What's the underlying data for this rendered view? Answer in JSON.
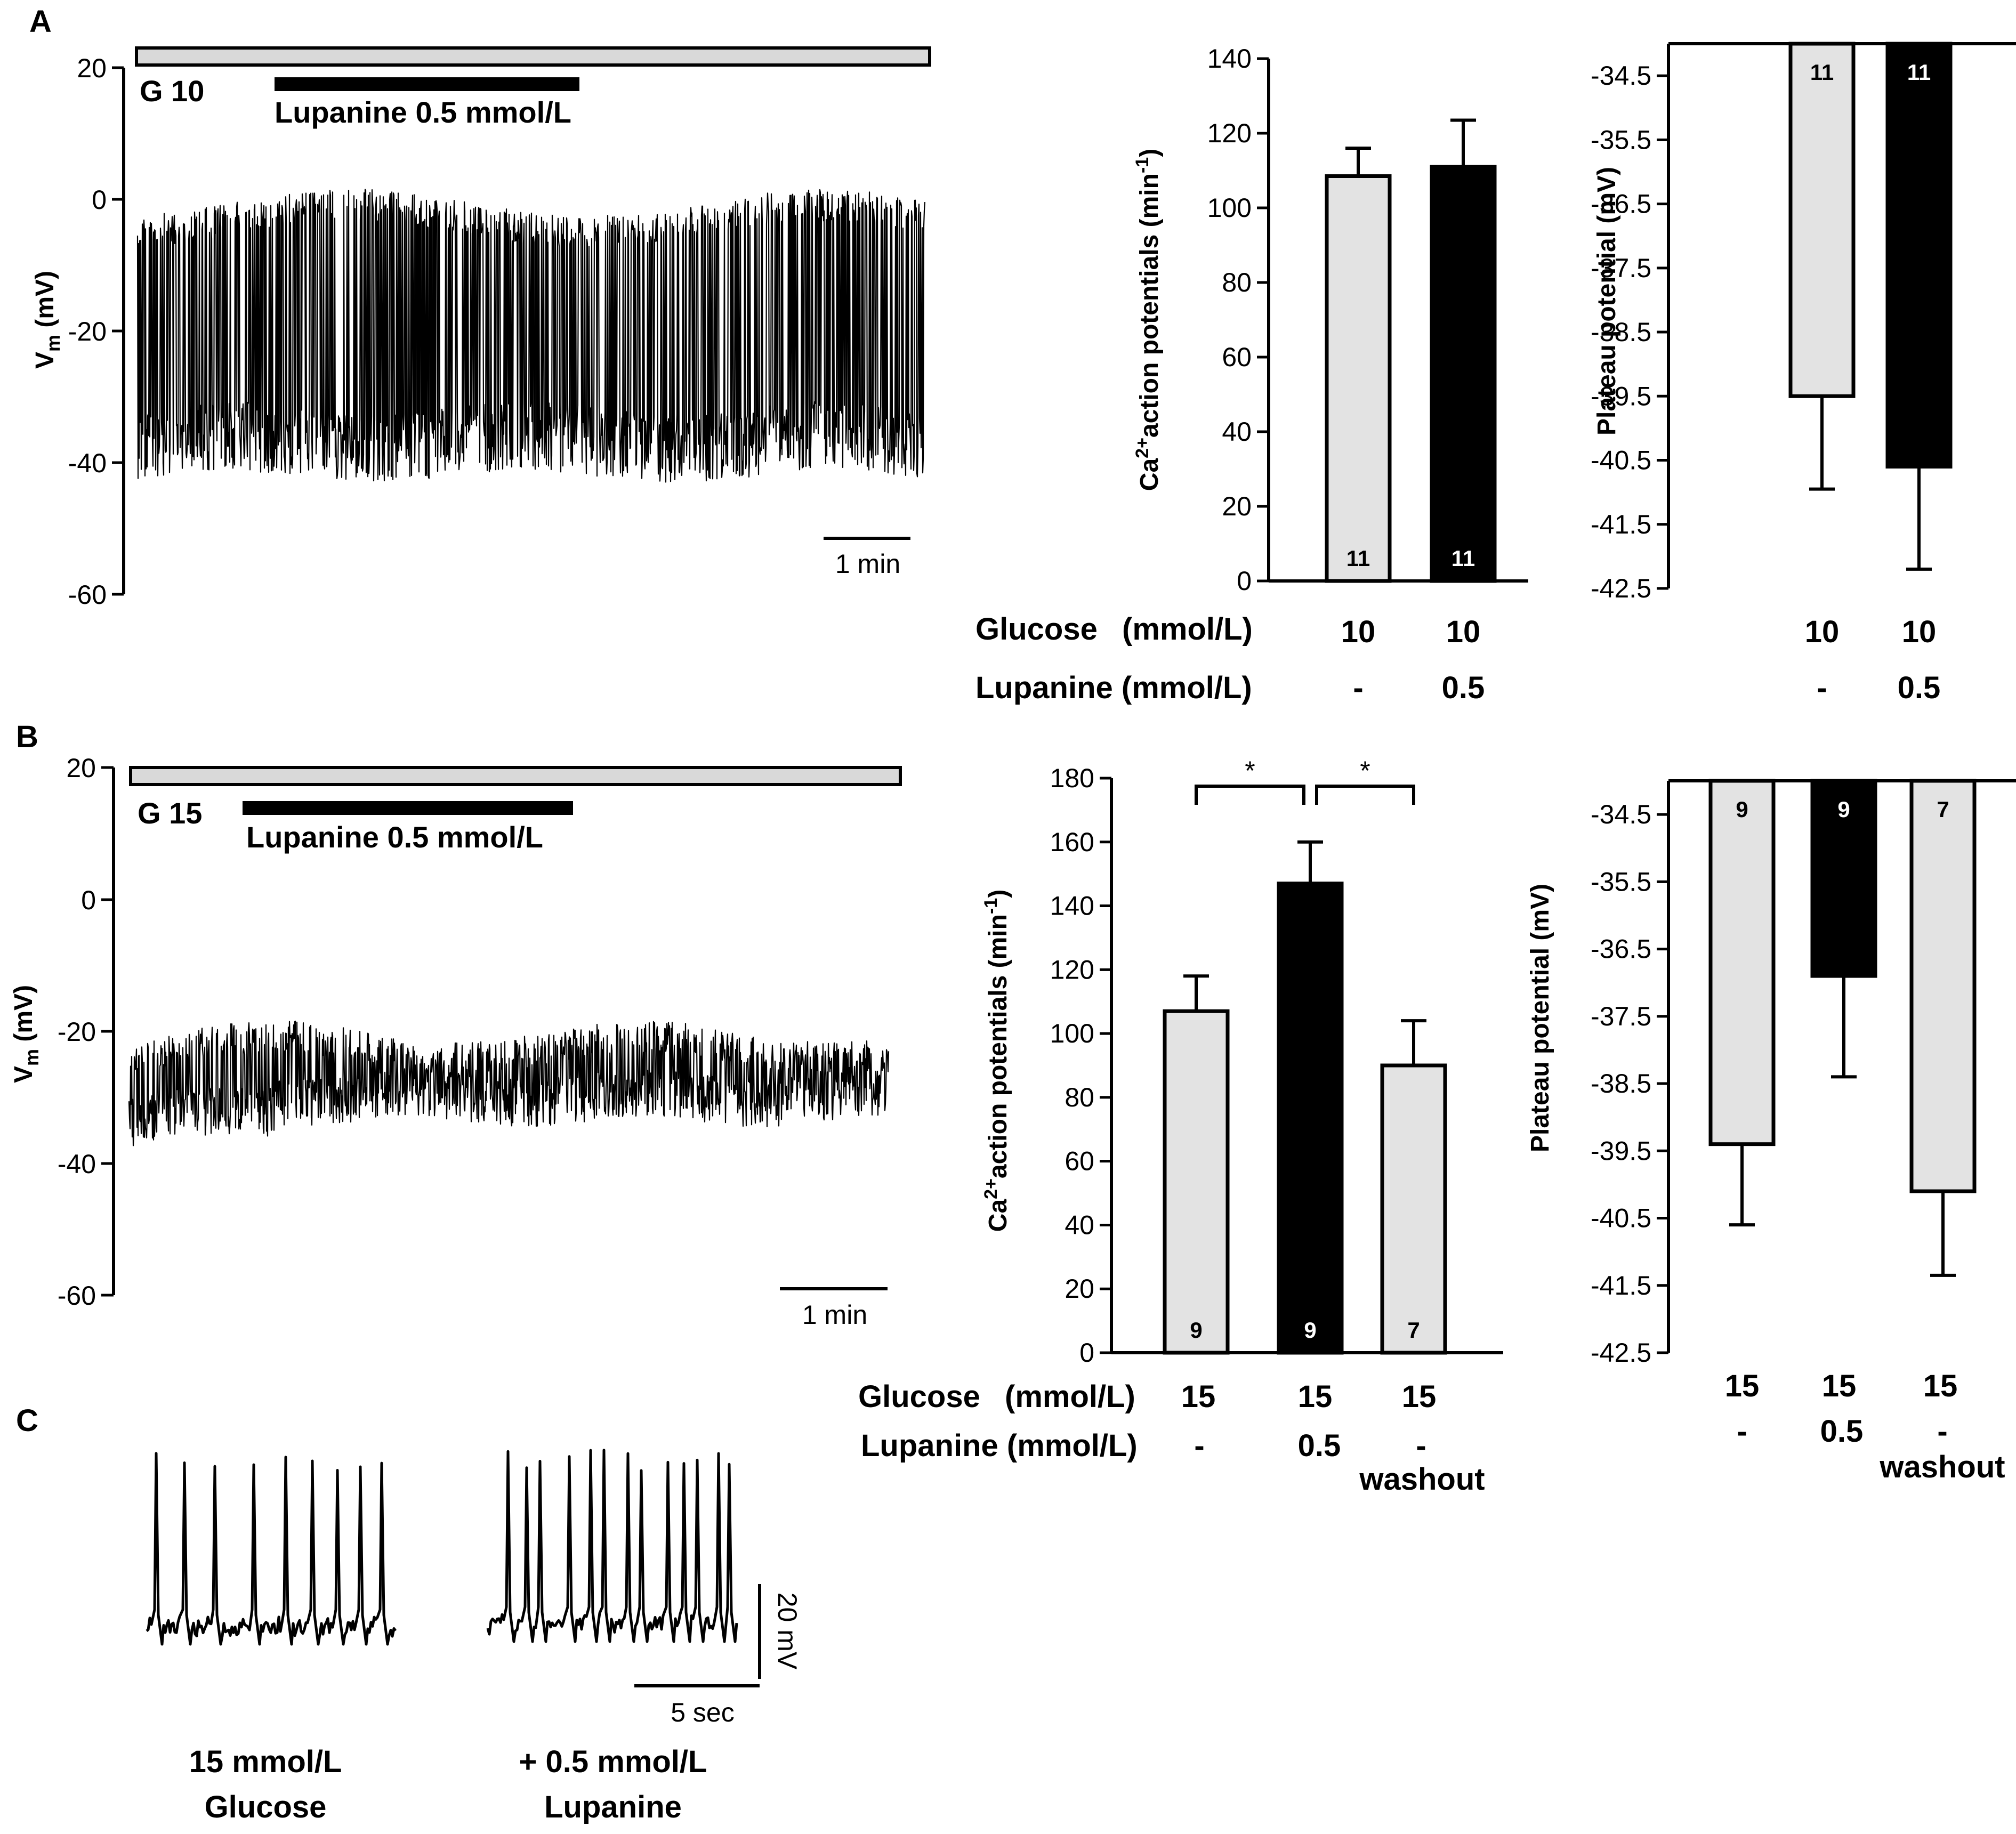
{
  "panels": {
    "a": "A",
    "b": "B",
    "c": "C"
  },
  "labels": {
    "glucose": "Glucose",
    "units": "(mmol/L)",
    "lupanine": "Lupanine (mmol/L)",
    "scale_time": "1 min",
    "scale_sec": "5 sec",
    "scale_mv": "20 mV",
    "c_left_1": "15 mmol/L",
    "c_left_2": "Glucose",
    "c_right_1": "+ 0.5 mmol/L",
    "c_right_2": "Lupanine",
    "star": "*"
  },
  "traceA": {
    "g_label": "G 10",
    "drug_label": "Lupanine 0.5 mmol/L",
    "ylabel_main": "V",
    "ylabel_sub": "m",
    "ylabel_unit": " (mV)",
    "yticks": [
      "20",
      "0",
      "-20",
      "-40",
      "-60"
    ]
  },
  "traceB": {
    "g_label": "G 15",
    "drug_label": "Lupanine 0.5 mmol/L",
    "ylabel_main": "V",
    "ylabel_sub": "m",
    "ylabel_unit": " (mV)",
    "yticks": [
      "20",
      "0",
      "-20",
      "-40",
      "-60"
    ]
  },
  "chart_data": [
    {
      "type": "bar",
      "id": "A-freq",
      "ylabel": "Ca2+ action potentials (min-1)",
      "ylabel_parts": [
        "Ca",
        "2+",
        "action potentials (min",
        "-1",
        ")"
      ],
      "ylim": [
        0,
        140
      ],
      "yticks": [
        "0",
        "20",
        "40",
        "60",
        "80",
        "100",
        "120",
        "140"
      ],
      "glucose": [
        "10",
        "10"
      ],
      "lupanine": [
        "-",
        "0.5"
      ],
      "values": [
        108.5,
        111
      ],
      "errors": [
        7.5,
        12.5
      ],
      "n": [
        "11",
        "11"
      ],
      "fills": [
        "#e3e3e3",
        "#000000"
      ]
    },
    {
      "type": "bar",
      "id": "A-plateau",
      "ylabel": "Plateau potential (mV)",
      "ylim": [
        -42.5,
        -34
      ],
      "yticks": [
        "-34.5",
        "-35.5",
        "-36.5",
        "-37.5",
        "-38.5",
        "-39.5",
        "-40.5",
        "-41.5",
        "-42.5"
      ],
      "glucose": [
        "10",
        "10"
      ],
      "lupanine": [
        "-",
        "0.5"
      ],
      "values": [
        -39.5,
        -40.6
      ],
      "errors": [
        1.45,
        1.6
      ],
      "n": [
        "11",
        "11"
      ],
      "fills": [
        "#e3e3e3",
        "#000000"
      ]
    },
    {
      "type": "bar",
      "id": "B-freq",
      "ylabel": "Ca2+ action potentials (min-1)",
      "ylabel_parts": [
        "Ca",
        "2+",
        "action potentials (min",
        "-1",
        ")"
      ],
      "ylim": [
        0,
        180
      ],
      "yticks": [
        "0",
        "20",
        "40",
        "60",
        "80",
        "100",
        "120",
        "140",
        "160",
        "180"
      ],
      "glucose": [
        "15",
        "15",
        "15"
      ],
      "lupanine": [
        "-",
        "0.5",
        "-"
      ],
      "extra": [
        "",
        "",
        "washout"
      ],
      "values": [
        107,
        147,
        90
      ],
      "errors": [
        11,
        13,
        14
      ],
      "n": [
        "9",
        "9",
        "7"
      ],
      "fills": [
        "#e3e3e3",
        "#000000",
        "#e3e3e3"
      ],
      "significance": [
        {
          "pair": [
            0,
            1
          ],
          "label": "*"
        },
        {
          "pair": [
            1,
            2
          ],
          "label": "*"
        }
      ]
    },
    {
      "type": "bar",
      "id": "B-plateau",
      "ylabel": "Plateau potential (mV)",
      "ylim": [
        -42.5,
        -34
      ],
      "yticks": [
        "-34.5",
        "-35.5",
        "-36.5",
        "-37.5",
        "-38.5",
        "-39.5",
        "-40.5",
        "-41.5",
        "-42.5"
      ],
      "glucose": [
        "15",
        "15",
        "15"
      ],
      "lupanine": [
        "-",
        "0.5",
        "-"
      ],
      "extra": [
        "",
        "",
        "washout"
      ],
      "values": [
        -39.4,
        -36.9,
        -40.1
      ],
      "errors": [
        1.2,
        1.5,
        1.25
      ],
      "n": [
        "9",
        "9",
        "7"
      ],
      "fills": [
        "#e3e3e3",
        "#000000",
        "#e3e3e3"
      ]
    }
  ]
}
